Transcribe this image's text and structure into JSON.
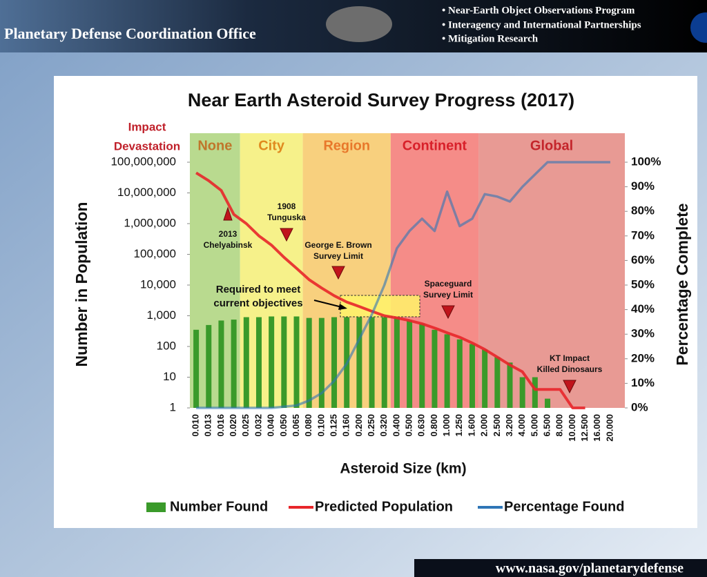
{
  "header": {
    "title": "Planetary Defense Coordination Office",
    "bullets": [
      "• Near-Earth Object Observations Program",
      "• Interagency and International Partnerships",
      "• Mitigation Research"
    ]
  },
  "footer": {
    "url": "www.nasa.gov/planetarydefense"
  },
  "chart_data": {
    "type": "combo",
    "title": "Near Earth Asteroid Survey Progress  (2017)",
    "x_label": "Asteroid Size (km)",
    "y_label": "Number in Population",
    "y2_label": "Percentage Complete",
    "zone_heading": [
      "Impact",
      "Devastation"
    ],
    "log_y": true,
    "categories": [
      "0.010",
      "0.013",
      "0.016",
      "0.020",
      "0.025",
      "0.032",
      "0.040",
      "0.050",
      "0.065",
      "0.080",
      "0.100",
      "0.125",
      "0.160",
      "0.200",
      "0.250",
      "0.320",
      "0.400",
      "0.500",
      "0.630",
      "0.800",
      "1.000",
      "1.250",
      "1.600",
      "2.000",
      "2.500",
      "3.200",
      "4.000",
      "5.000",
      "6.500",
      "8.000",
      "10.000",
      "12.500",
      "16.000",
      "20.000"
    ],
    "ylim": [
      1,
      100000000
    ],
    "yticks": [
      1,
      10,
      100,
      {
        "value": 1000,
        "label": "1,000"
      },
      {
        "value": 10000,
        "label": "10,000"
      },
      {
        "value": 100000,
        "label": "100,000"
      },
      {
        "value": 1000000,
        "label": "1,000,000"
      },
      {
        "value": 10000000,
        "label": "10,000,000"
      },
      {
        "value": 100000000,
        "label": "100,000,000"
      }
    ],
    "y2lim": [
      0,
      100
    ],
    "y2ticks": [
      {
        "value": 0,
        "label": "0%"
      },
      {
        "value": 10,
        "label": "10%"
      },
      {
        "value": 20,
        "label": "20%"
      },
      {
        "value": 30,
        "label": "30%"
      },
      {
        "value": 40,
        "label": "40%"
      },
      {
        "value": 50,
        "label": "50%"
      },
      {
        "value": 60,
        "label": "60%"
      },
      {
        "value": 70,
        "label": "70%"
      },
      {
        "value": 80,
        "label": "80%"
      },
      {
        "value": 90,
        "label": "90%"
      },
      {
        "value": 100,
        "label": "100%"
      }
    ],
    "zones": [
      {
        "label": "None",
        "from": "0.010",
        "to": "0.020",
        "color": "#b9da8f",
        "label_color": "#c0762b"
      },
      {
        "label": "City",
        "from": "0.025",
        "to": "0.065",
        "color": "#f6f18a",
        "label_color": "#e08a1f"
      },
      {
        "label": "Region",
        "from": "0.080",
        "to": "0.320",
        "color": "#f8d07e",
        "label_color": "#e8782b"
      },
      {
        "label": "Continent",
        "from": "0.400",
        "to": "1.600",
        "color": "#f58c88",
        "label_color": "#d8202a"
      },
      {
        "label": "Global",
        "from": "2.000",
        "to": "20.000",
        "color": "#e89a94",
        "label_color": "#c4252b"
      }
    ],
    "series": [
      {
        "name": "Number Found",
        "type": "bar",
        "color": "#3a9a2a",
        "values": [
          350,
          500,
          700,
          750,
          900,
          900,
          950,
          950,
          950,
          850,
          850,
          900,
          900,
          900,
          900,
          900,
          850,
          700,
          550,
          350,
          250,
          170,
          120,
          80,
          45,
          30,
          10,
          10,
          2,
          null,
          null,
          null,
          null,
          null
        ]
      },
      {
        "name": "Predicted Population",
        "type": "line",
        "color": "#e8262a",
        "values": [
          45000000,
          25000000,
          12000000,
          2000000,
          1000000,
          400000,
          200000,
          80000,
          35000,
          15000,
          8000,
          4500,
          2800,
          2000,
          1400,
          1000,
          850,
          700,
          550,
          400,
          280,
          200,
          130,
          80,
          45,
          25,
          15,
          4,
          4,
          4,
          1,
          1,
          null,
          null
        ]
      },
      {
        "name": "Percentage Found",
        "type": "line",
        "axis": "y2",
        "color": "#2e75b6",
        "values": [
          0,
          0,
          0,
          0,
          0,
          0,
          0,
          0.5,
          1,
          3,
          6,
          11,
          18,
          28,
          38,
          50,
          65,
          72,
          77,
          72,
          88,
          74,
          77,
          87,
          86,
          84,
          90,
          95,
          100,
          100,
          100,
          100,
          100,
          100
        ]
      }
    ],
    "annotations": [
      {
        "lines": [
          "2013",
          "Chelyabinsk"
        ]
      },
      {
        "lines": [
          "1908",
          "Tunguska"
        ]
      },
      {
        "lines": [
          "George E. Brown",
          "Survey Limit"
        ]
      },
      {
        "lines": [
          "Spaceguard",
          "Survey Limit"
        ]
      },
      {
        "lines": [
          "KT Impact",
          "Killed Dinosaurs"
        ]
      },
      {
        "lines": [
          "Required to meet",
          "current objectives"
        ]
      }
    ]
  }
}
